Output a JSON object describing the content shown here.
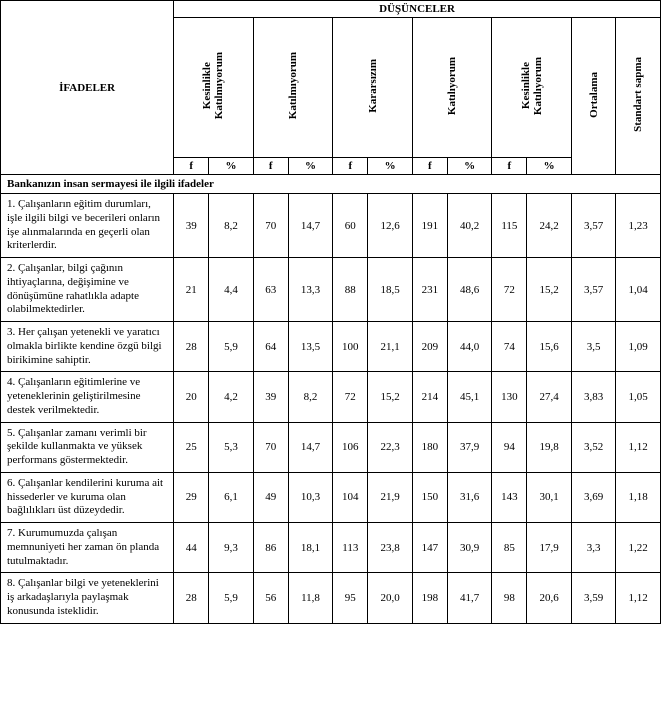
{
  "header": {
    "statements_label": "İFADELER",
    "thoughts_label": "DÜŞÜNCELER",
    "scale": {
      "c1": "Kesinlikle\nKatılmıyorum",
      "c2": "Katılmıyorum",
      "c3": "Kararsızım",
      "c4": "Katılıyorum",
      "c5": "Kesinlikle\nKatılıyorum"
    },
    "mean": "Ortalama",
    "sd": "Standart sapma",
    "f": "f",
    "pct": "%"
  },
  "section_title": "Bankanızın insan sermayesi ile ilgili ifadeler",
  "rows": [
    {
      "stmt": "1.   Çalışanların eğitim durumları, işle ilgili bilgi ve becerileri onların işe alınmalarında en geçerli olan kriterlerdir.",
      "f1": "39",
      "p1": "8,2",
      "f2": "70",
      "p2": "14,7",
      "f3": "60",
      "p3": "12,6",
      "f4": "191",
      "p4": "40,2",
      "f5": "115",
      "p5": "24,2",
      "mean": "3,57",
      "sd": "1,23"
    },
    {
      "stmt": "2.   Çalışanlar, bilgi çağının ihtiyaçlarına, değişimine ve dönüşümüne rahatlıkla adapte olabilmektedirler.",
      "f1": "21",
      "p1": "4,4",
      "f2": "63",
      "p2": "13,3",
      "f3": "88",
      "p3": "18,5",
      "f4": "231",
      "p4": "48,6",
      "f5": "72",
      "p5": "15,2",
      "mean": "3,57",
      "sd": "1,04"
    },
    {
      "stmt": "3.   Her çalışan yetenekli ve yaratıcı olmakla birlikte kendine özgü bilgi birikimine sahiptir.",
      "f1": "28",
      "p1": "5,9",
      "f2": "64",
      "p2": "13,5",
      "f3": "100",
      "p3": "21,1",
      "f4": "209",
      "p4": "44,0",
      "f5": "74",
      "p5": "15,6",
      "mean": "3,5",
      "sd": "1,09"
    },
    {
      "stmt": "4.   Çalışanların eğitimlerine ve yeteneklerinin geliştirilmesine destek verilmektedir.",
      "f1": "20",
      "p1": "4,2",
      "f2": "39",
      "p2": "8,2",
      "f3": "72",
      "p3": "15,2",
      "f4": "214",
      "p4": "45,1",
      "f5": "130",
      "p5": "27,4",
      "mean": "3,83",
      "sd": "1,05"
    },
    {
      "stmt": "5.   Çalışanlar zamanı verimli bir şekilde kullanmakta ve yüksek performans göstermektedir.",
      "f1": "25",
      "p1": "5,3",
      "f2": "70",
      "p2": "14,7",
      "f3": "106",
      "p3": "22,3",
      "f4": "180",
      "p4": "37,9",
      "f5": "94",
      "p5": "19,8",
      "mean": "3,52",
      "sd": "1,12"
    },
    {
      "stmt": "6.   Çalışanlar kendilerini kuruma ait hissederler ve kuruma olan bağlılıkları üst düzeydedir.",
      "f1": "29",
      "p1": "6,1",
      "f2": "49",
      "p2": "10,3",
      "f3": "104",
      "p3": "21,9",
      "f4": "150",
      "p4": "31,6",
      "f5": "143",
      "p5": "30,1",
      "mean": "3,69",
      "sd": "1,18"
    },
    {
      "stmt": "7.   Kurumumuzda çalışan memnuniyeti her zaman ön planda tutulmaktadır.",
      "f1": "44",
      "p1": "9,3",
      "f2": "86",
      "p2": "18,1",
      "f3": "113",
      "p3": "23,8",
      "f4": "147",
      "p4": "30,9",
      "f5": "85",
      "p5": "17,9",
      "mean": "3,3",
      "sd": "1,22"
    },
    {
      "stmt": "8.   Çalışanlar bilgi ve yeteneklerini iş arkadaşlarıyla paylaşmak konusunda isteklidir.",
      "f1": "28",
      "p1": "5,9",
      "f2": "56",
      "p2": "11,8",
      "f3": "95",
      "p3": "20,0",
      "f4": "198",
      "p4": "41,7",
      "f5": "98",
      "p5": "20,6",
      "mean": "3,59",
      "sd": "1,12"
    }
  ]
}
